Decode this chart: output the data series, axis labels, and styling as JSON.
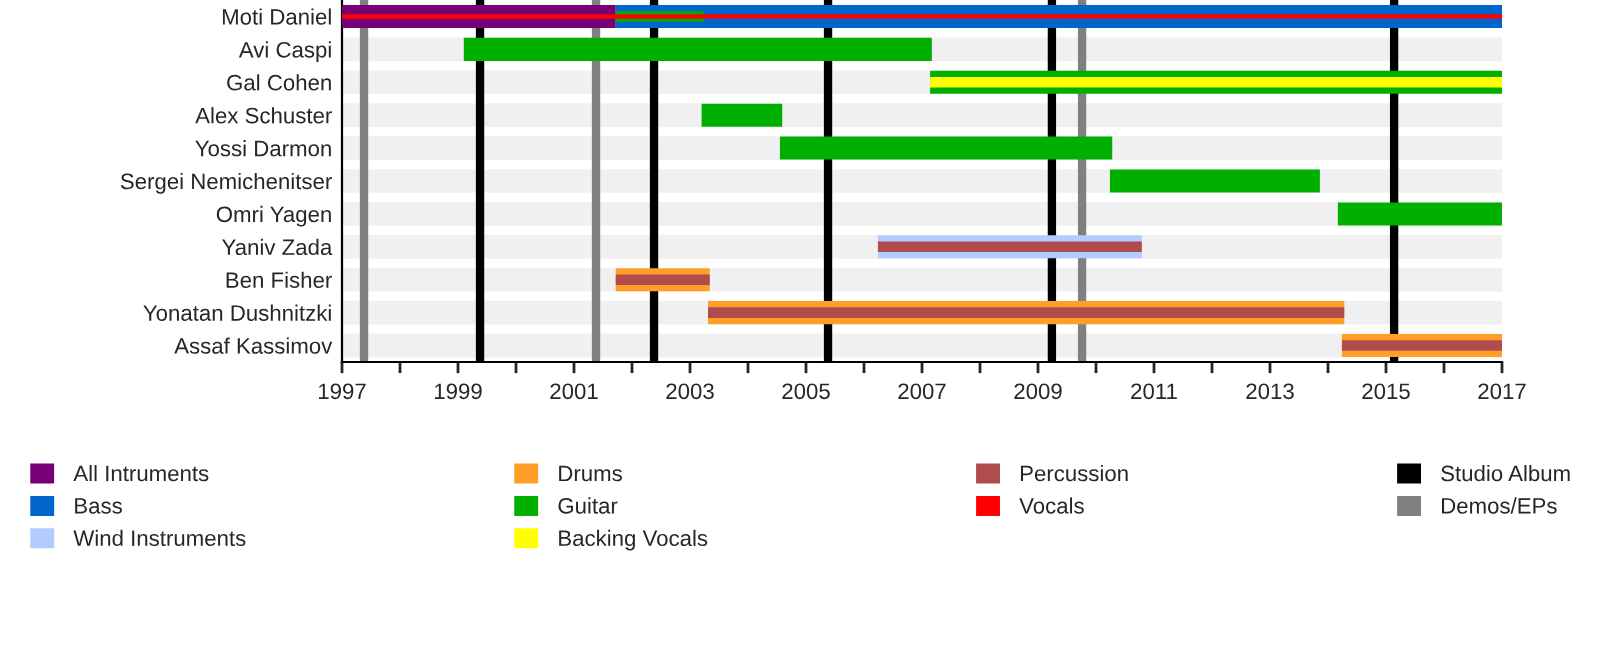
{
  "chart_data": {
    "type": "bar",
    "orientation": "horizontal",
    "categories": [
      "Moti Daniel",
      "Avi Caspi",
      "Gal Cohen",
      "Alex Schuster",
      "Yossi Darmon",
      "Sergei Nemichenitser",
      "Omri Yagen",
      "Yaniv Zada",
      "Ben Fisher",
      "Yonatan Dushnitzki",
      "Assaf Kassimov"
    ],
    "series": [
      {
        "name": "All Intruments",
        "color": "#770077",
        "base": [
          1997,
          null,
          null,
          null,
          null,
          null,
          null,
          null,
          null,
          null,
          null
        ],
        "values": [
          4.72,
          null,
          null,
          null,
          null,
          null,
          null,
          null,
          null,
          null,
          null
        ]
      },
      {
        "name": "Bass",
        "color": "#0066cc",
        "base": [
          2001.72,
          null,
          null,
          null,
          null,
          null,
          null,
          null,
          null,
          null,
          null
        ],
        "values": [
          15.28,
          null,
          null,
          null,
          null,
          null,
          null,
          null,
          null,
          null,
          null
        ]
      },
      {
        "name": "Wind Instruments",
        "color": "#b3ccff",
        "base": [
          null,
          null,
          null,
          null,
          null,
          null,
          null,
          2006.24,
          null,
          null,
          null
        ],
        "values": [
          null,
          null,
          null,
          null,
          null,
          null,
          null,
          4.55,
          null,
          null,
          null
        ]
      },
      {
        "name": "Drums",
        "color": "#ff9f27",
        "base": [
          null,
          null,
          null,
          null,
          null,
          null,
          null,
          null,
          2001.72,
          2003.31,
          2014.24
        ],
        "values": [
          null,
          null,
          null,
          null,
          null,
          null,
          null,
          null,
          1.62,
          10.97,
          2.76
        ]
      },
      {
        "name": "Guitar",
        "color": "#00b000",
        "base": [
          2001.72,
          1999.1,
          2007.14,
          2003.2,
          2004.55,
          2010.24,
          2014.17,
          null,
          null,
          null,
          null
        ],
        "values": [
          1.52,
          8.07,
          9.86,
          1.39,
          5.73,
          3.62,
          2.83,
          null,
          null,
          null,
          null
        ]
      },
      {
        "name": "Backing Vocals",
        "color": "#ffff00",
        "base": [
          null,
          null,
          2007.14,
          null,
          null,
          null,
          null,
          null,
          null,
          null,
          null
        ],
        "values": [
          null,
          null,
          9.86,
          null,
          null,
          null,
          null,
          null,
          null,
          null,
          null
        ]
      },
      {
        "name": "Percussion",
        "color": "#b04c4c",
        "base": [
          null,
          null,
          null,
          null,
          null,
          null,
          null,
          2006.24,
          2001.72,
          2003.31,
          2014.24
        ],
        "values": [
          null,
          null,
          null,
          null,
          null,
          null,
          null,
          4.55,
          1.62,
          10.97,
          2.76
        ]
      },
      {
        "name": "Vocals",
        "color": "#ff0000",
        "base": [
          1997,
          null,
          null,
          null,
          null,
          null,
          null,
          null,
          null,
          null,
          null
        ],
        "values": [
          20,
          null,
          null,
          null,
          null,
          null,
          null,
          null,
          null,
          null,
          null
        ]
      }
    ],
    "ref_lines": [
      {
        "axis": "x",
        "value": 1999.38,
        "label": "Studio Album",
        "color": "#000000"
      },
      {
        "axis": "x",
        "value": 2002.38,
        "color": "#000000"
      },
      {
        "axis": "x",
        "value": 2005.38,
        "color": "#000000"
      },
      {
        "axis": "x",
        "value": 2009.24,
        "color": "#000000"
      },
      {
        "axis": "x",
        "value": 2015.14,
        "color": "#000000"
      },
      {
        "axis": "x",
        "value": 1997.38,
        "label": "Demos/EPs",
        "color": "#808080"
      },
      {
        "axis": "x",
        "value": 2001.38,
        "color": "#808080"
      },
      {
        "axis": "x",
        "value": 2009.76,
        "color": "#808080"
      }
    ],
    "xlim": [
      1997,
      2017
    ],
    "xticks": [
      1997,
      {
        "value": 1998,
        "label": null
      },
      1999,
      {
        "value": 2000,
        "label": null
      },
      2001,
      {
        "value": 2002,
        "label": null
      },
      2003,
      {
        "value": 2004,
        "label": null
      },
      2005,
      {
        "value": 2006,
        "label": null
      },
      2007,
      {
        "value": 2008,
        "label": null
      },
      2009,
      {
        "value": 2010,
        "label": null
      },
      2011,
      {
        "value": 2012,
        "label": null
      },
      2013,
      {
        "value": 2014,
        "label": null
      },
      2015,
      {
        "value": 2016,
        "label": null
      },
      2017
    ],
    "grid": false,
    "legend": "bottom"
  }
}
